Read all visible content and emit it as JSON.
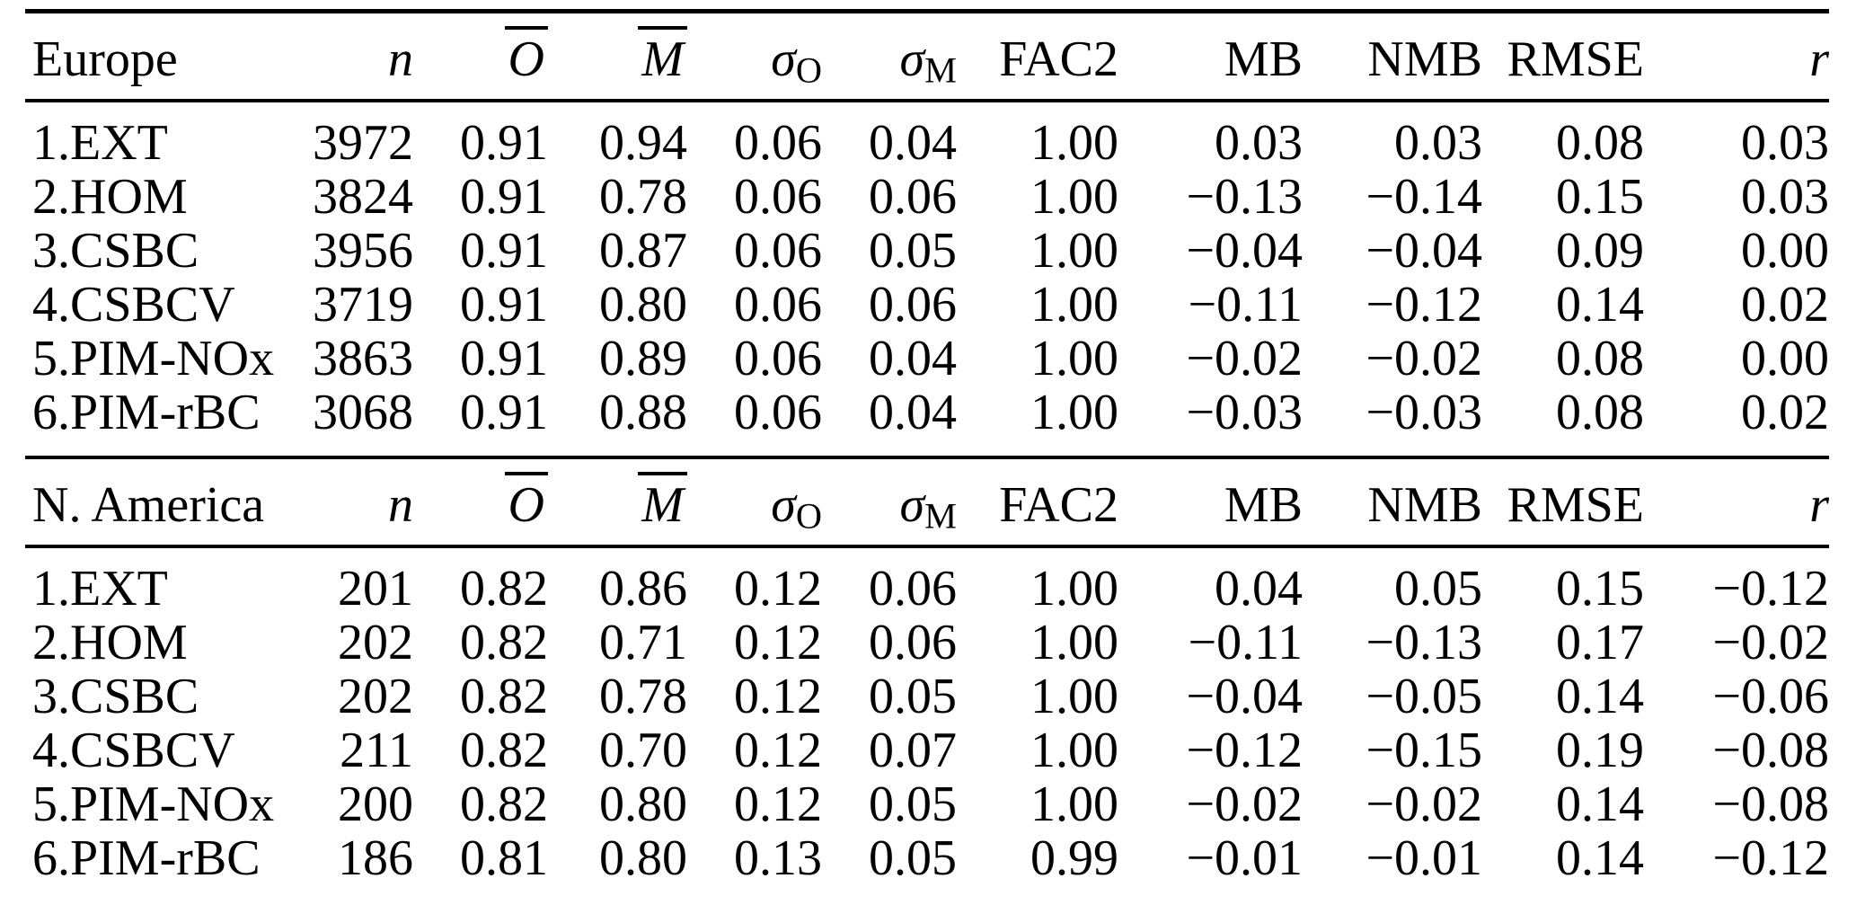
{
  "table": {
    "columns": [
      {
        "key": "n",
        "label": "n",
        "style": "italic"
      },
      {
        "key": "O",
        "label": "O",
        "style": "overline-italic"
      },
      {
        "key": "M",
        "label": "M",
        "style": "overline-italic"
      },
      {
        "key": "sigmaO",
        "label": "σ",
        "sub": "O"
      },
      {
        "key": "sigmaM",
        "label": "σ",
        "sub": "M"
      },
      {
        "key": "FAC2",
        "label": "FAC2"
      },
      {
        "key": "MB",
        "label": "MB"
      },
      {
        "key": "NMB",
        "label": "NMB"
      },
      {
        "key": "RMSE",
        "label": "RMSE"
      },
      {
        "key": "r",
        "label": "r",
        "style": "italic"
      }
    ],
    "sections": [
      {
        "title": "Europe",
        "rows": [
          {
            "label": "1.EXT",
            "values": [
              "3972",
              "0.91",
              "0.94",
              "0.06",
              "0.04",
              "1.00",
              "0.03",
              "0.03",
              "0.08",
              "0.03"
            ]
          },
          {
            "label": "2.HOM",
            "values": [
              "3824",
              "0.91",
              "0.78",
              "0.06",
              "0.06",
              "1.00",
              "−0.13",
              "−0.14",
              "0.15",
              "0.03"
            ]
          },
          {
            "label": "3.CSBC",
            "values": [
              "3956",
              "0.91",
              "0.87",
              "0.06",
              "0.05",
              "1.00",
              "−0.04",
              "−0.04",
              "0.09",
              "0.00"
            ]
          },
          {
            "label": "4.CSBCV",
            "values": [
              "3719",
              "0.91",
              "0.80",
              "0.06",
              "0.06",
              "1.00",
              "−0.11",
              "−0.12",
              "0.14",
              "0.02"
            ]
          },
          {
            "label": "5.PIM-NOx",
            "values": [
              "3863",
              "0.91",
              "0.89",
              "0.06",
              "0.04",
              "1.00",
              "−0.02",
              "−0.02",
              "0.08",
              "0.00"
            ]
          },
          {
            "label": "6.PIM-rBC",
            "values": [
              "3068",
              "0.91",
              "0.88",
              "0.06",
              "0.04",
              "1.00",
              "−0.03",
              "−0.03",
              "0.08",
              "0.02"
            ]
          }
        ]
      },
      {
        "title": "N. America",
        "rows": [
          {
            "label": "1.EXT",
            "values": [
              "201",
              "0.82",
              "0.86",
              "0.12",
              "0.06",
              "1.00",
              "0.04",
              "0.05",
              "0.15",
              "−0.12"
            ]
          },
          {
            "label": "2.HOM",
            "values": [
              "202",
              "0.82",
              "0.71",
              "0.12",
              "0.06",
              "1.00",
              "−0.11",
              "−0.13",
              "0.17",
              "−0.02"
            ]
          },
          {
            "label": "3.CSBC",
            "values": [
              "202",
              "0.82",
              "0.78",
              "0.12",
              "0.05",
              "1.00",
              "−0.04",
              "−0.05",
              "0.14",
              "−0.06"
            ]
          },
          {
            "label": "4.CSBCV",
            "values": [
              "211",
              "0.82",
              "0.70",
              "0.12",
              "0.07",
              "1.00",
              "−0.12",
              "−0.15",
              "0.19",
              "−0.08"
            ]
          },
          {
            "label": "5.PIM-NOx",
            "values": [
              "200",
              "0.82",
              "0.80",
              "0.12",
              "0.05",
              "1.00",
              "−0.02",
              "−0.02",
              "0.14",
              "−0.08"
            ]
          },
          {
            "label": "6.PIM-rBC",
            "values": [
              "186",
              "0.81",
              "0.80",
              "0.13",
              "0.05",
              "0.99",
              "−0.01",
              "−0.01",
              "0.14",
              "−0.12"
            ]
          }
        ]
      }
    ]
  }
}
